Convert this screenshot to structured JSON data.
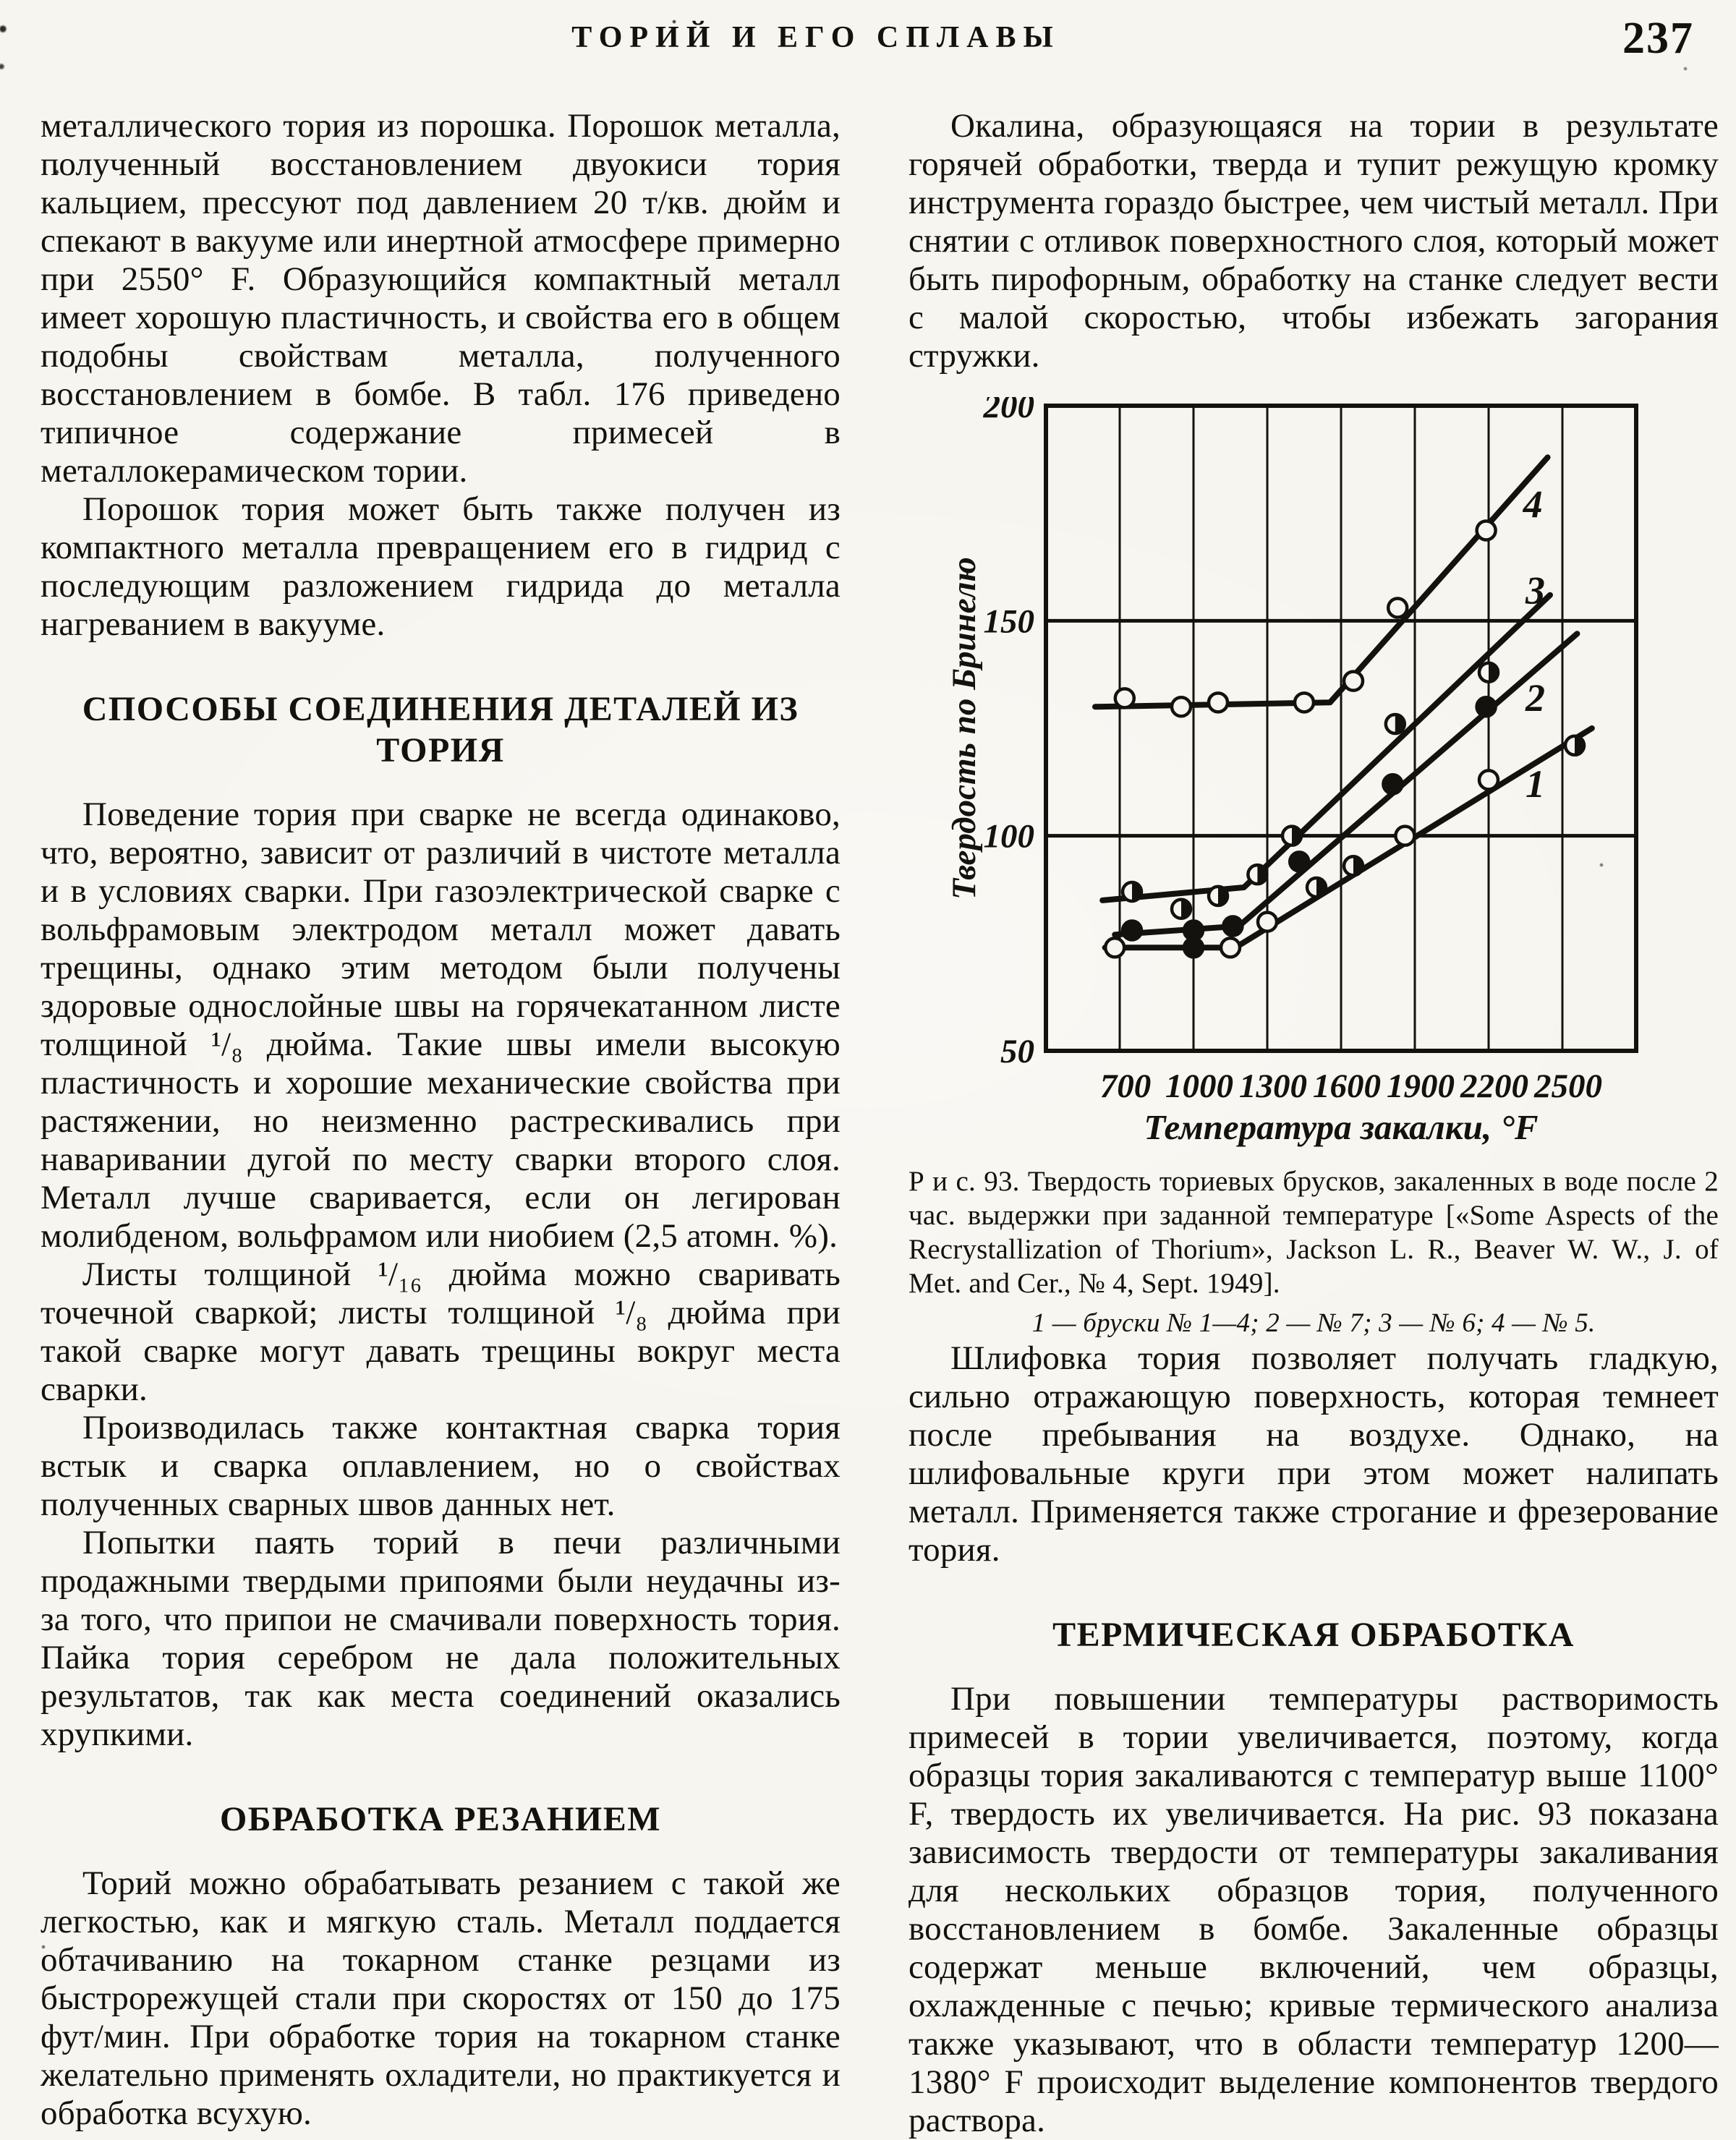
{
  "page": {
    "header": {
      "title": "ТОРИЙ И ЕГО СПЛАВЫ",
      "page_number": "237"
    },
    "left_column": {
      "p1": "металлического тория из порошка. Порошок металла, полученный восстановлением двуокиси тория кальцием, прессуют под давлением 20 т/кв. дюйм и спекают в вакууме или инертной атмосфере примерно при 2550° F. Образующийся компактный металл имеет хорошую пластичность, и свойства его в общем подобны свойствам металла, полученного восстановлением в бомбе. В табл. 176 приведено типичное содержание примесей в металлокерамическом тории.",
      "p2": "Порошок тория может быть также получен из компактного металла превращением его в гидрид с последующим разложением гидрида до металла нагреванием в вакууме.",
      "h1": "СПОСОБЫ СОЕДИНЕНИЯ ДЕТАЛЕЙ ИЗ ТОРИЯ",
      "p3": "Поведение тория при сварке не всегда одинаково, что, вероятно, зависит от различий в чистоте металла и в условиях сварки. При газоэлектрической сварке с вольфрамовым электродом металл может давать трещины, однако этим методом были получены здоровые однослойные швы на горячекатанном листе толщиной ¹/₈ дюйма. Такие швы имели высокую пластичность и хорошие механические свойства при растяжении, но неизменно растрескивались при наваривании дугой по месту сварки второго слоя. Металл лучше сваривается, если он легирован молибденом, вольфрамом или ниобием (2,5 атомн. %).",
      "p4": "Листы толщиной ¹/₁₆ дюйма можно сваривать точечной сваркой; листы толщиной ¹/₈ дюйма при такой сварке могут давать трещины вокруг места сварки.",
      "p5": "Производилась также контактная сварка тория встык и сварка оплавлением, но о свойствах полученных сварных швов данных нет.",
      "p6": "Попытки паять торий в печи различными продажными твердыми припоями были неудачны из-за того, что припои не смачивали поверхность тория. Пайка тория серебром не дала положительных результатов, так как места соединений оказались хрупкими.",
      "h2": "ОБРАБОТКА РЕЗАНИЕМ",
      "p7": "Торий можно обрабатывать резанием с такой же легкостью, как и мягкую сталь. Металл поддается обтачиванию на токарном станке резцами из быстрорежущей стали при скоростях от 150 до 175 фут/мин. При обработке тория на токарном станке желательно применять охладители, но практикуется и обработка всухую."
    },
    "right_column": {
      "p1": "Окалина, образующаяся на тории в результате горячей обработки, тверда и тупит режущую кромку инструмента гораздо быстрее, чем чистый металл. При снятии с отливок поверхностного слоя, который может быть пирофорным, обработку на станке следует вести с малой скоростью, чтобы избежать загорания стружки.",
      "figure": {
        "caption": "Р и с.  93. Твердость ториевых брусков, закаленных в воде после 2 час. выдержки при заданной температуре [«Some Aspects of the Recrystallization of Thorium», Jackson L. R., Beaver W. W., J. of Met. and Cer., № 4, Sept. 1949].",
        "legend": "1 — бруски № 1—4;  2 — № 7;  3 — № 6;  4 — № 5."
      },
      "p2": "Шлифовка тория позволяет получать гладкую, сильно отражающую поверхность, которая темнеет после пребывания на воздухе. Однако, на шлифовальные круги при этом может налипать металл. Применяется также строгание и фрезерование тория.",
      "h1": "ТЕРМИЧЕСКАЯ ОБРАБОТКА",
      "p3": "При повышении температуры растворимость примесей в тории увеличивается, поэтому, когда образцы тория закаливаются с температур выше 1100° F, твердость их увеличивается. На рис. 93 показана зависимость твердости от температуры закаливания для нескольких образцов тория, полученного восстановлением в бомбе. Закаленные образцы содержат меньше включений, чем образцы, охлажденные с печью; кривые термического анализа также указывают, что в области температур 1200—1380° F происходит выделение компонентов твердого раствора."
    }
  },
  "chart_data": {
    "type": "line",
    "title": "Рис. 93. Твердость ториевых брусков, закаленных в воде после 2 час. выдержки при заданной температуре",
    "xlabel": "Температура закалки, °F",
    "ylabel": "Твердость по Бринелю",
    "xlim": [
      400,
      2800
    ],
    "ylim": [
      50,
      200
    ],
    "x_ticks": [
      700,
      1000,
      1300,
      1600,
      1900,
      2200,
      2500
    ],
    "y_ticks": [
      50,
      100,
      150,
      200
    ],
    "grid": {
      "vertical": "at every x tick",
      "horizontal": "at every y tick",
      "border": true
    },
    "legend_position": "numeric labels on curves",
    "series": [
      {
        "name": "1",
        "specimens": "бруски № 1—4",
        "marker": "half-right",
        "line": [
          [
            640,
            74
          ],
          [
            1170,
            74
          ],
          [
            2620,
            125
          ]
        ],
        "points": [
          [
            680,
            74,
            "open"
          ],
          [
            1000,
            74,
            "solid"
          ],
          [
            1150,
            74,
            "open"
          ],
          [
            1300,
            80,
            "open"
          ],
          [
            1500,
            88,
            "half-right"
          ],
          [
            1650,
            93,
            "half-right"
          ],
          [
            1860,
            100,
            "open"
          ],
          [
            2200,
            113,
            "open"
          ],
          [
            2550,
            121,
            "half-right"
          ]
        ],
        "label_pos": [
          2350,
          109
        ]
      },
      {
        "name": "2",
        "specimens": "№ 7",
        "marker": "solid",
        "line": [
          [
            680,
            77
          ],
          [
            1185,
            79
          ],
          [
            2560,
            147
          ]
        ],
        "points": [
          [
            750,
            78
          ],
          [
            1000,
            78
          ],
          [
            1160,
            79
          ],
          [
            1430,
            94
          ],
          [
            1810,
            112
          ],
          [
            2190,
            130
          ]
        ],
        "label_pos": [
          2350,
          129
        ]
      },
      {
        "name": "3",
        "specimens": "№ 6",
        "marker": "half-right",
        "line": [
          [
            630,
            85
          ],
          [
            1205,
            88
          ],
          [
            2450,
            156
          ]
        ],
        "points": [
          [
            750,
            87
          ],
          [
            950,
            83
          ],
          [
            1100,
            86
          ],
          [
            1260,
            91
          ],
          [
            1400,
            100
          ],
          [
            1820,
            126
          ],
          [
            2200,
            138
          ]
        ],
        "label_pos": [
          2350,
          154
        ]
      },
      {
        "name": "4",
        "specimens": "№ 5",
        "marker": "open",
        "line": [
          [
            600,
            130
          ],
          [
            1555,
            131
          ],
          [
            2440,
            188
          ]
        ],
        "points": [
          [
            720,
            132
          ],
          [
            950,
            130
          ],
          [
            1100,
            131
          ],
          [
            1450,
            131
          ],
          [
            1650,
            136
          ],
          [
            1830,
            153
          ],
          [
            2190,
            171
          ]
        ],
        "label_pos": [
          2340,
          174
        ]
      }
    ]
  }
}
